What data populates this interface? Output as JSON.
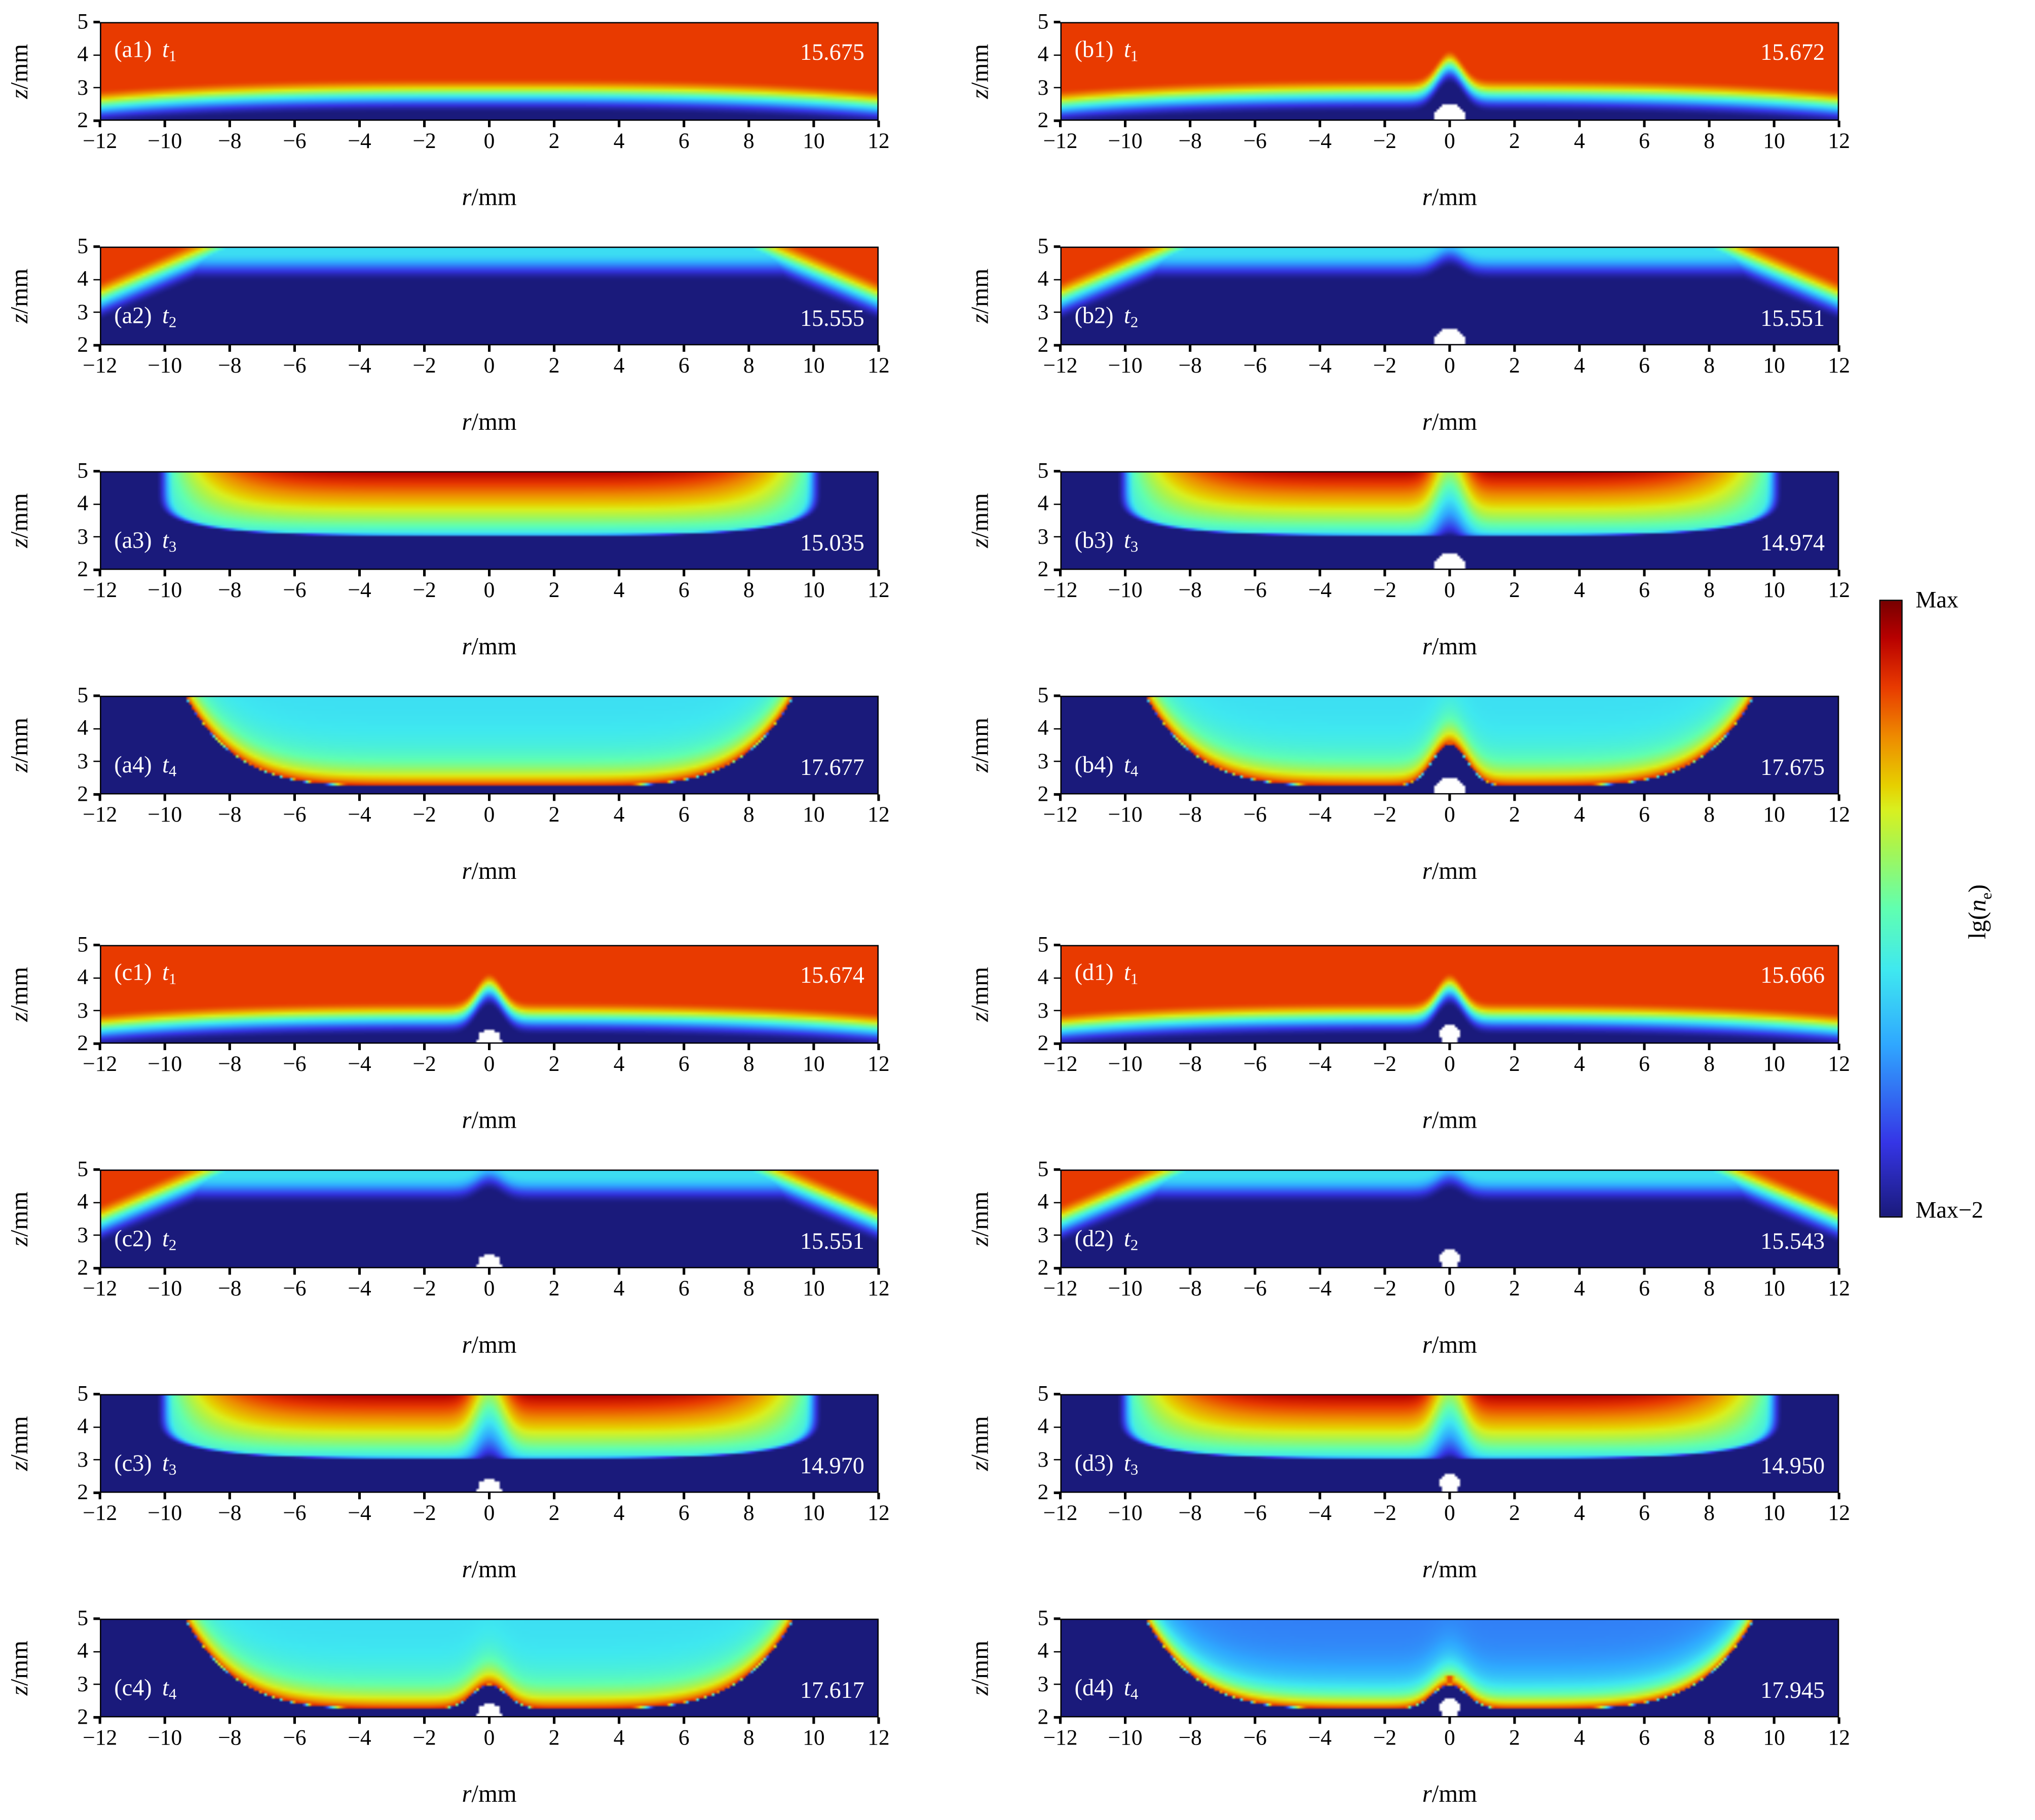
{
  "chart_data": {
    "type": "heatmap",
    "xlabel": {
      "var": "r",
      "unit": "/mm"
    },
    "ylabel": {
      "var": "z",
      "unit": "/mm"
    },
    "xlim": [
      -12,
      12
    ],
    "ylim": [
      2,
      5
    ],
    "xticks": [
      "−12",
      "−10",
      "−8",
      "−6",
      "−4",
      "−2",
      "0",
      "2",
      "4",
      "6",
      "8",
      "10",
      "12"
    ],
    "xtick_values": [
      -12,
      -10,
      -8,
      -6,
      -4,
      -2,
      0,
      2,
      4,
      6,
      8,
      10,
      12
    ],
    "yticks": [
      "2",
      "3",
      "4",
      "5"
    ],
    "ytick_values": [
      2,
      3,
      4,
      5
    ],
    "colormap": "jet",
    "colorbar": {
      "label_base": "lg(",
      "label_var": "n",
      "label_sub": "e",
      "label_end": ")",
      "max_label": "Max",
      "min_label": "Max−2"
    },
    "panels": [
      {
        "label": "(a1)",
        "time": "t",
        "time_sub": "1",
        "value": "15.675"
      },
      {
        "label": "(b1)",
        "time": "t",
        "time_sub": "1",
        "value": "15.672"
      },
      {
        "label": "(a2)",
        "time": "t",
        "time_sub": "2",
        "value": "15.555"
      },
      {
        "label": "(b2)",
        "time": "t",
        "time_sub": "2",
        "value": "15.551"
      },
      {
        "label": "(a3)",
        "time": "t",
        "time_sub": "3",
        "value": "15.035"
      },
      {
        "label": "(b3)",
        "time": "t",
        "time_sub": "3",
        "value": "14.974"
      },
      {
        "label": "(a4)",
        "time": "t",
        "time_sub": "4",
        "value": "17.677"
      },
      {
        "label": "(b4)",
        "time": "t",
        "time_sub": "4",
        "value": "17.675"
      },
      {
        "label": "(c1)",
        "time": "t",
        "time_sub": "1",
        "value": "15.674"
      },
      {
        "label": "(d1)",
        "time": "t",
        "time_sub": "1",
        "value": "15.666"
      },
      {
        "label": "(c2)",
        "time": "t",
        "time_sub": "2",
        "value": "15.551"
      },
      {
        "label": "(d2)",
        "time": "t",
        "time_sub": "2",
        "value": "15.543"
      },
      {
        "label": "(c3)",
        "time": "t",
        "time_sub": "3",
        "value": "14.970"
      },
      {
        "label": "(d3)",
        "time": "t",
        "time_sub": "3",
        "value": "14.950"
      },
      {
        "label": "(c4)",
        "time": "t",
        "time_sub": "4",
        "value": "17.617"
      },
      {
        "label": "(d4)",
        "time": "t",
        "time_sub": "4",
        "value": "17.945"
      }
    ]
  }
}
